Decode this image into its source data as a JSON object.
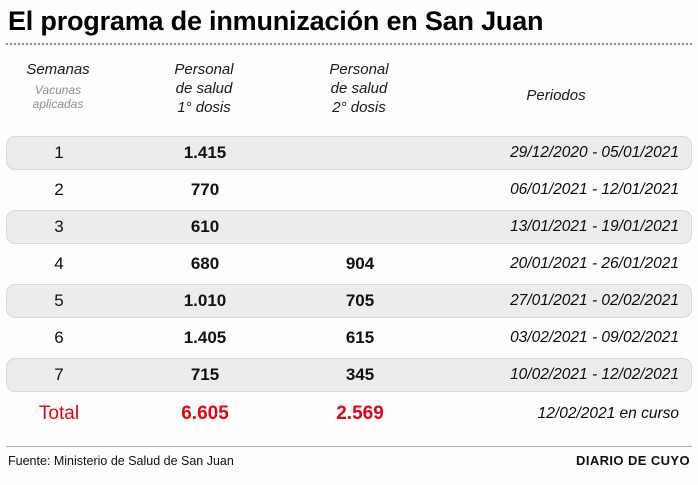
{
  "title": "El programa de inmunización en San Juan",
  "chart_data": {
    "type": "table",
    "title": "El programa de inmunización en San Juan",
    "columns": {
      "weeks": "Semanas",
      "weeks_sub": "Vacunas\naplicadas",
      "dose1": "Personal\nde salud\n1° dosis",
      "dose2": "Personal\nde salud\n2° dosis",
      "periods": "Periodos"
    },
    "rows": [
      {
        "week": "1",
        "dose1": "1.415",
        "dose2": "",
        "period": "29/12/2020 - 05/01/2021"
      },
      {
        "week": "2",
        "dose1": "770",
        "dose2": "",
        "period": "06/01/2021 - 12/01/2021"
      },
      {
        "week": "3",
        "dose1": "610",
        "dose2": "",
        "period": "13/01/2021 - 19/01/2021"
      },
      {
        "week": "4",
        "dose1": "680",
        "dose2": "904",
        "period": "20/01/2021 - 26/01/2021"
      },
      {
        "week": "5",
        "dose1": "1.010",
        "dose2": "705",
        "period": "27/01/2021 - 02/02/2021"
      },
      {
        "week": "6",
        "dose1": "1.405",
        "dose2": "615",
        "period": "03/02/2021 - 09/02/2021"
      },
      {
        "week": "7",
        "dose1": "715",
        "dose2": "345",
        "period": "10/02/2021 - 12/02/2021"
      }
    ],
    "total": {
      "label": "Total",
      "dose1": "6.605",
      "dose2": "2.569",
      "period": "12/02/2021 en curso"
    },
    "series": [
      {
        "name": "Personal de salud 1° dosis",
        "values": [
          1415,
          770,
          610,
          680,
          1010,
          1405,
          715
        ],
        "total": 6605
      },
      {
        "name": "Personal de salud 2° dosis",
        "values": [
          null,
          null,
          null,
          904,
          705,
          615,
          345
        ],
        "total": 2569
      }
    ]
  },
  "footer": {
    "source": "Fuente: Ministerio de Salud de San Juan",
    "brand": "DIARIO DE CUYO"
  },
  "colors": {
    "total_red": "#e00613",
    "row_shade": "#ececec"
  }
}
